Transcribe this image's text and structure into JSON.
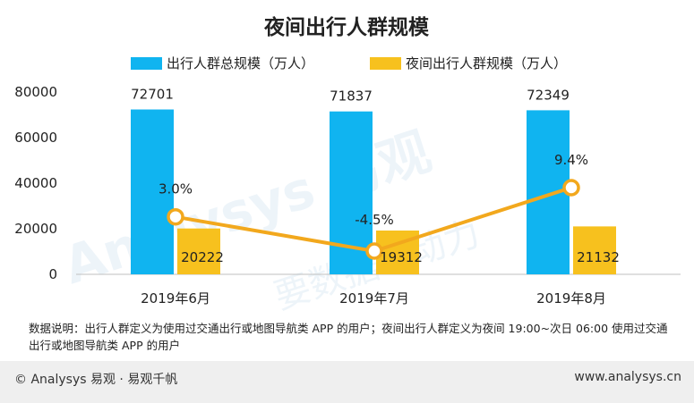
{
  "chart_data": {
    "type": "bar",
    "title": "夜间出行人群规模",
    "categories": [
      "2019年6月",
      "2019年7月",
      "2019年8月"
    ],
    "series": [
      {
        "name": "出行人群总规模（万人）",
        "values": [
          72701,
          71837,
          72349
        ],
        "color": "#10b4f0"
      },
      {
        "name": "夜间出行人群规模（万人）",
        "values": [
          20222,
          19312,
          21132
        ],
        "color": "#f7c11e"
      }
    ],
    "line": {
      "labels": [
        "3.0%",
        "-4.5%",
        "9.4%"
      ],
      "values": [
        3.0,
        -4.5,
        9.4
      ],
      "color": "#f2a81d"
    },
    "yticks": [
      "0",
      "20000",
      "40000",
      "60000",
      "80000"
    ],
    "ylim": [
      0,
      80000
    ]
  },
  "note": "数据说明：出行人群定义为使用过交通出行或地图导航类 APP 的用户；夜间出行人群定义为夜间 19:00~次日 06:00 使用过交通出行或地图导航类 APP 的用户",
  "footer": {
    "left": "© Analysys  易观 · 易观千帆",
    "right": "www.analysys.cn"
  },
  "watermark": "Analysys 易观 要数据 · 动力"
}
